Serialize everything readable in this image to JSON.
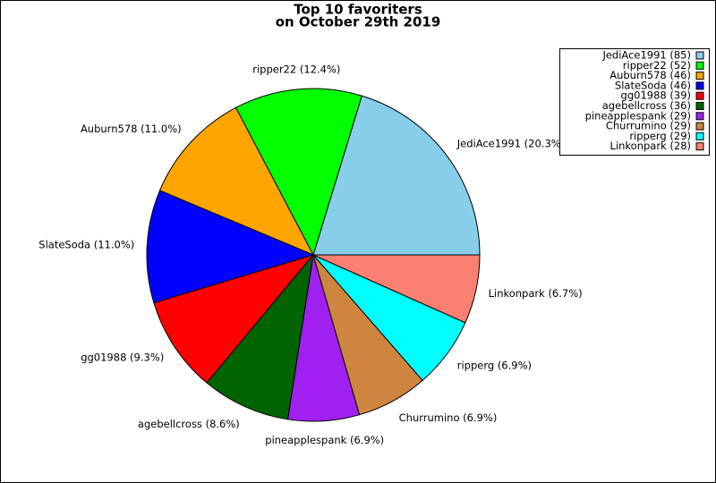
{
  "chart_data": {
    "type": "pie",
    "title_lines": [
      "Top 10 favoriters",
      "on October 29th 2019"
    ],
    "categories": [
      "JediAce1991",
      "ripper22",
      "Auburn578",
      "SlateSoda",
      "gg01988",
      "agebellcross",
      "pineapplespank",
      "Churrumino",
      "ripperg",
      "Linkonpark"
    ],
    "values": [
      85,
      52,
      46,
      46,
      39,
      36,
      29,
      29,
      29,
      28
    ],
    "slice_labels": [
      "JediAce1991 (20.3%)",
      "ripper22 (12.4%)",
      "Auburn578 (11.0%)",
      "SlateSoda (11.0%)",
      "gg01988 (9.3%)",
      "agebellcross (8.6%)",
      "pineapplespank (6.9%)",
      "Churrumino (6.9%)",
      "ripperg (6.9%)",
      "Linkonpark (6.7%)"
    ],
    "legend_labels": [
      "JediAce1991 (85)",
      "ripper22 (52)",
      "Auburn578 (46)",
      "SlateSoda (46)",
      "gg01988 (39)",
      "agebellcross (36)",
      "pineapplespank (29)",
      "Churrumino (29)",
      "ripperg (29)",
      "Linkonpark (28)"
    ],
    "colors": [
      "#87ceeb",
      "#00ff00",
      "#ffa500",
      "#0000ff",
      "#ff0000",
      "#006400",
      "#a020f0",
      "#cd853f",
      "#00ffff",
      "#fa8072"
    ],
    "legend_position": "upper right"
  }
}
